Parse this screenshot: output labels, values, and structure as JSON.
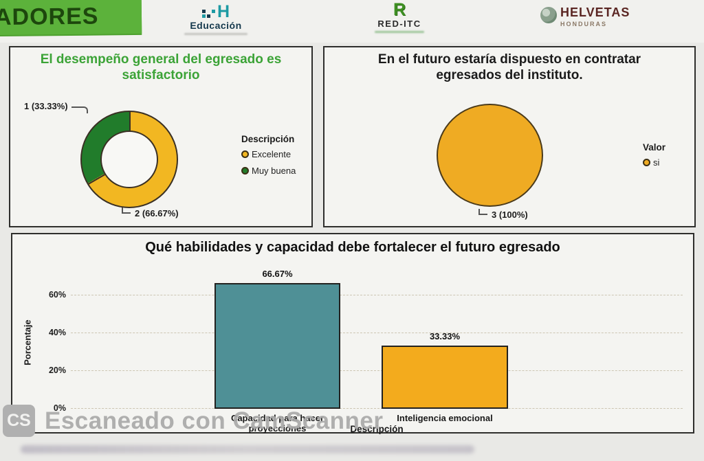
{
  "banner": {
    "text": "ADORES"
  },
  "logos": {
    "educacion": {
      "monogram": "H",
      "label": "Educación"
    },
    "reditc": {
      "monogram": "R",
      "label": "RED-ITC"
    },
    "helvetas": {
      "label": "HELVETAS",
      "sublabel": "HONDURAS"
    }
  },
  "watermark": {
    "logo": "CS",
    "text": "Escaneado con CamScanner"
  },
  "chart_data": [
    {
      "type": "donut",
      "title": "El desempeño general del egresado es satisfactorio",
      "title_color": "#3ba336",
      "legend_title": "Descripción",
      "legend_position": "right",
      "slices": [
        {
          "label": "Excelente",
          "value": 2,
          "pct": 66.67,
          "color": "#F2B722",
          "callout": "2 (66.67%)"
        },
        {
          "label": "Muy buena",
          "value": 1,
          "pct": 33.33,
          "color": "#217C2B",
          "callout": "1 (33.33%)"
        }
      ]
    },
    {
      "type": "pie",
      "title": "En el futuro estaría dispuesto en contratar egresados del instituto.",
      "legend_title": "Valor",
      "legend_position": "right",
      "slices": [
        {
          "label": "si",
          "value": 3,
          "pct": 100,
          "color": "#EFAB23",
          "callout": "3 (100%)"
        }
      ]
    },
    {
      "type": "bar",
      "title": "Qué habilidades y capacidad debe fortalecer el futuro egresado",
      "xlabel": "Descripción",
      "ylabel": "Porcentaje",
      "yticks": [
        "0%",
        "20%",
        "40%",
        "60%"
      ],
      "ylim": [
        0,
        75
      ],
      "grid": true,
      "legend_position": "none",
      "categories": [
        "Capacidad para hacer proyecciones",
        "Inteligencia emocional"
      ],
      "values": [
        66.67,
        33.33
      ],
      "value_labels": [
        "66.67%",
        "33.33%"
      ],
      "colors": [
        "#4F9096",
        "#F3AB1D"
      ]
    }
  ]
}
